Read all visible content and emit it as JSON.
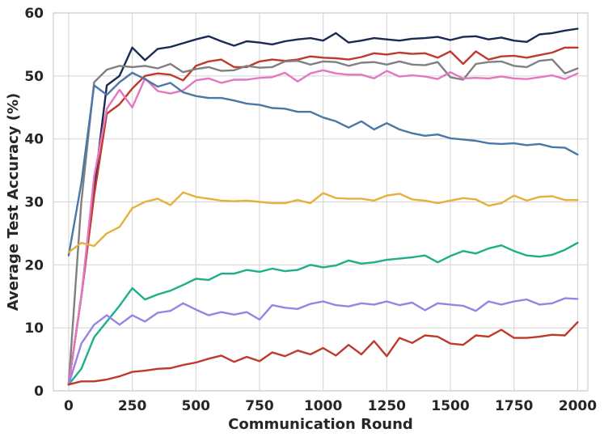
{
  "chart_data": {
    "type": "line",
    "title": "",
    "xlabel": "Communication Round",
    "ylabel": "Average Test Accuracy (%)",
    "xlim": [
      -60,
      2040
    ],
    "ylim": [
      0,
      60
    ],
    "xticks": [
      0,
      250,
      500,
      750,
      1000,
      1250,
      1500,
      1750,
      2000
    ],
    "yticks": [
      0,
      10,
      20,
      30,
      40,
      50,
      60
    ],
    "grid": true,
    "legend": "none",
    "series": [
      {
        "name": "navy",
        "color": "#1b2a54",
        "x": [
          0,
          50,
          100,
          150,
          200,
          250,
          300,
          350,
          400,
          450,
          500,
          550,
          600,
          650,
          700,
          750,
          800,
          850,
          900,
          950,
          1000,
          1050,
          1100,
          1150,
          1200,
          1250,
          1300,
          1350,
          1400,
          1450,
          1500,
          1550,
          1600,
          1650,
          1700,
          1750,
          1800,
          1850,
          1900,
          1950,
          2000
        ],
        "y": [
          1,
          15,
          32,
          48.5,
          50,
          54.5,
          52.5,
          54.3,
          54.6,
          55.2,
          55.8,
          56.3,
          55.5,
          54.8,
          55.5,
          55.3,
          55,
          55.5,
          55.8,
          56,
          55.6,
          56.8,
          55.3,
          55.6,
          56,
          55.8,
          55.6,
          55.9,
          56,
          56.2,
          55.7,
          56.2,
          56.3,
          55.8,
          56.1,
          55.6,
          55.4,
          56.6,
          56.8,
          57.2,
          57.5
        ]
      },
      {
        "name": "red",
        "color": "#c0392b",
        "x": [
          0,
          50,
          100,
          150,
          200,
          250,
          300,
          350,
          400,
          450,
          500,
          550,
          600,
          650,
          700,
          750,
          800,
          850,
          900,
          950,
          1000,
          1050,
          1100,
          1150,
          1200,
          1250,
          1300,
          1350,
          1400,
          1450,
          1500,
          1550,
          1600,
          1650,
          1700,
          1750,
          1800,
          1850,
          1900,
          1950,
          2000
        ],
        "y": [
          1,
          15,
          31,
          44,
          45.5,
          48,
          50,
          50.4,
          50.2,
          49.3,
          51.6,
          52.3,
          52.6,
          51.4,
          51.4,
          52.3,
          52.6,
          52.4,
          52.6,
          53.1,
          52.9,
          52.8,
          52.6,
          53,
          53.6,
          53.4,
          53.7,
          53.5,
          53.6,
          52.9,
          53.9,
          51.9,
          53.9,
          52.6,
          53.1,
          53.2,
          52.9,
          53.3,
          53.7,
          54.5,
          54.5
        ]
      },
      {
        "name": "gray",
        "color": "#808080",
        "x": [
          0,
          50,
          100,
          150,
          200,
          250,
          300,
          350,
          400,
          450,
          500,
          550,
          600,
          650,
          700,
          750,
          800,
          850,
          900,
          950,
          1000,
          1050,
          1100,
          1150,
          1200,
          1250,
          1300,
          1350,
          1400,
          1450,
          1500,
          1550,
          1600,
          1650,
          1700,
          1750,
          1800,
          1850,
          1900,
          1950,
          2000
        ],
        "y": [
          1,
          30,
          49,
          51,
          51.6,
          51.4,
          51.6,
          51.2,
          51.9,
          50.6,
          51.1,
          51.4,
          50.8,
          50.9,
          51.6,
          51.3,
          51.4,
          52.3,
          52.4,
          51.8,
          52.3,
          52.2,
          51.6,
          52.1,
          52.2,
          51.8,
          52.3,
          51.8,
          51.7,
          52.2,
          49.8,
          49.4,
          51.9,
          52.2,
          52.3,
          51.6,
          51.4,
          52.4,
          52.6,
          50.4,
          51.2
        ]
      },
      {
        "name": "pink",
        "color": "#e377c2",
        "x": [
          0,
          50,
          100,
          150,
          200,
          250,
          300,
          350,
          400,
          450,
          500,
          550,
          600,
          650,
          700,
          750,
          800,
          850,
          900,
          950,
          1000,
          1050,
          1100,
          1150,
          1200,
          1250,
          1300,
          1350,
          1400,
          1450,
          1500,
          1550,
          1600,
          1650,
          1700,
          1750,
          1800,
          1850,
          1900,
          1950,
          2000
        ],
        "y": [
          1,
          15,
          34,
          44.8,
          47.8,
          45,
          49.6,
          47.6,
          47.2,
          47.7,
          49.3,
          49.6,
          48.9,
          49.4,
          49.4,
          49.7,
          49.8,
          50.5,
          49.1,
          50.4,
          50.9,
          50.4,
          50.2,
          50.2,
          49.6,
          50.8,
          49.9,
          50.1,
          49.9,
          49.5,
          50.6,
          49.6,
          49.7,
          49.6,
          49.9,
          49.6,
          49.5,
          49.8,
          50.1,
          49.5,
          50.4
        ]
      },
      {
        "name": "steel blue",
        "color": "#4a78a6",
        "x": [
          0,
          50,
          100,
          150,
          200,
          250,
          300,
          350,
          400,
          450,
          500,
          550,
          600,
          650,
          700,
          750,
          800,
          850,
          900,
          950,
          1000,
          1050,
          1100,
          1150,
          1200,
          1250,
          1300,
          1350,
          1400,
          1450,
          1500,
          1550,
          1600,
          1650,
          1700,
          1750,
          1800,
          1850,
          1900,
          1950,
          2000
        ],
        "y": [
          21.5,
          33,
          48.5,
          47,
          49,
          50.5,
          49.5,
          48.3,
          48.9,
          47.4,
          46.8,
          46.5,
          46.5,
          46.1,
          45.6,
          45.4,
          44.9,
          44.8,
          44.3,
          44.3,
          43.4,
          42.8,
          41.8,
          42.8,
          41.5,
          42.5,
          41.5,
          40.9,
          40.5,
          40.7,
          40.1,
          39.9,
          39.7,
          39.3,
          39.2,
          39.3,
          39,
          39.2,
          38.7,
          38.6,
          37.5
        ]
      },
      {
        "name": "gold",
        "color": "#e5b13a",
        "x": [
          0,
          50,
          100,
          150,
          200,
          250,
          300,
          350,
          400,
          450,
          500,
          550,
          600,
          650,
          700,
          750,
          800,
          850,
          900,
          950,
          1000,
          1050,
          1100,
          1150,
          1200,
          1250,
          1300,
          1350,
          1400,
          1450,
          1500,
          1550,
          1600,
          1650,
          1700,
          1750,
          1800,
          1850,
          1900,
          1950,
          2000
        ],
        "y": [
          22,
          23.5,
          23,
          25,
          26,
          29,
          30,
          30.5,
          29.5,
          31.5,
          30.8,
          30.5,
          30.2,
          30.1,
          30.2,
          30,
          29.8,
          29.8,
          30.3,
          29.8,
          31.4,
          30.6,
          30.5,
          30.5,
          30.2,
          31,
          31.3,
          30.4,
          30.2,
          29.8,
          30.2,
          30.6,
          30.4,
          29.4,
          29.8,
          31,
          30.2,
          30.8,
          30.9,
          30.3,
          30.3
        ]
      },
      {
        "name": "green",
        "color": "#1fae8a",
        "x": [
          0,
          50,
          100,
          150,
          200,
          250,
          300,
          350,
          400,
          450,
          500,
          550,
          600,
          650,
          700,
          750,
          800,
          850,
          900,
          950,
          1000,
          1050,
          1100,
          1150,
          1200,
          1250,
          1300,
          1350,
          1400,
          1450,
          1500,
          1550,
          1600,
          1650,
          1700,
          1750,
          1800,
          1850,
          1900,
          1950,
          2000
        ],
        "y": [
          1,
          3.5,
          8.5,
          11,
          13.5,
          16.3,
          14.5,
          15.3,
          15.9,
          16.8,
          17.8,
          17.6,
          18.6,
          18.6,
          19.2,
          18.9,
          19.4,
          19,
          19.2,
          20,
          19.6,
          19.9,
          20.7,
          20.2,
          20.4,
          20.8,
          21,
          21.2,
          21.5,
          20.4,
          21.4,
          22.2,
          21.8,
          22.6,
          23.1,
          22.2,
          21.5,
          21.3,
          21.6,
          22.4,
          23.5
        ]
      },
      {
        "name": "purple",
        "color": "#9883e5",
        "x": [
          0,
          50,
          100,
          150,
          200,
          250,
          300,
          350,
          400,
          450,
          500,
          550,
          600,
          650,
          700,
          750,
          800,
          850,
          900,
          950,
          1000,
          1050,
          1100,
          1150,
          1200,
          1250,
          1300,
          1350,
          1400,
          1450,
          1500,
          1550,
          1600,
          1650,
          1700,
          1750,
          1800,
          1850,
          1900,
          1950,
          2000
        ],
        "y": [
          1,
          7.5,
          10.5,
          12,
          10.5,
          12,
          11,
          12.4,
          12.7,
          13.9,
          12.9,
          12,
          12.5,
          12.1,
          12.5,
          11.3,
          13.6,
          13.2,
          13,
          13.8,
          14.2,
          13.6,
          13.4,
          13.9,
          13.7,
          14.2,
          13.6,
          14,
          12.8,
          13.9,
          13.7,
          13.5,
          12.7,
          14.2,
          13.7,
          14.2,
          14.5,
          13.7,
          13.9,
          14.7,
          14.6
        ]
      },
      {
        "name": "dark red",
        "color": "#c0392b",
        "x": [
          0,
          50,
          100,
          150,
          200,
          250,
          300,
          350,
          400,
          450,
          500,
          550,
          600,
          650,
          700,
          750,
          800,
          850,
          900,
          950,
          1000,
          1050,
          1100,
          1150,
          1200,
          1250,
          1300,
          1350,
          1400,
          1450,
          1500,
          1550,
          1600,
          1650,
          1700,
          1750,
          1800,
          1850,
          1900,
          1950,
          2000
        ],
        "y": [
          1,
          1.5,
          1.5,
          1.8,
          2.3,
          3,
          3.2,
          3.5,
          3.6,
          4.1,
          4.5,
          5.1,
          5.6,
          4.6,
          5.4,
          4.7,
          6.1,
          5.5,
          6.4,
          5.8,
          6.8,
          5.6,
          7.3,
          5.8,
          7.9,
          5.5,
          8.4,
          7.6,
          8.8,
          8.6,
          7.5,
          7.3,
          8.8,
          8.6,
          9.7,
          8.4,
          8.4,
          8.6,
          8.9,
          8.8,
          10.9
        ]
      }
    ]
  }
}
